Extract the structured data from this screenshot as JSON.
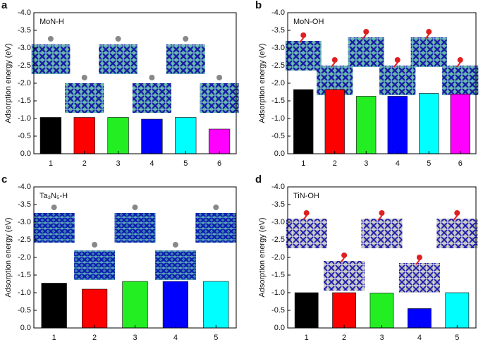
{
  "chart_data": [
    {
      "type": "bar",
      "panel_label": "a",
      "label": "MoN-H",
      "y_label": "Adsorption energy (eV)",
      "categories": [
        "1",
        "2",
        "3",
        "4",
        "5",
        "6"
      ],
      "values": [
        -1.03,
        -1.03,
        -1.03,
        -0.98,
        -1.03,
        -0.7
      ],
      "colors": [
        "#000000",
        "#ff0000",
        "#22ee22",
        "#0000ff",
        "#00ffff",
        "#ff00ff"
      ],
      "ylim": [
        0,
        -4
      ],
      "yticks": [
        {
          "value": 0,
          "label": "0.0"
        },
        -0.5,
        {
          "value": -1,
          "label": "-1.0"
        },
        -1.5,
        {
          "value": -2,
          "label": "-2.0"
        },
        -2.5,
        {
          "value": -3,
          "label": "-3.0"
        },
        -3.5,
        {
          "value": -4,
          "label": "-4.0"
        }
      ]
    },
    {
      "type": "bar",
      "panel_label": "b",
      "label": "MoN-OH",
      "y_label": "Adsorption energy (eV)",
      "categories": [
        "1",
        "2",
        "3",
        "4",
        "5",
        "6"
      ],
      "values": [
        -1.82,
        -1.82,
        -1.63,
        -1.63,
        -1.71,
        -1.69
      ],
      "colors": [
        "#000000",
        "#ff0000",
        "#22ee22",
        "#0000ff",
        "#00ffff",
        "#ff00ff"
      ],
      "ylim": [
        0,
        -4
      ],
      "yticks": [
        {
          "value": 0,
          "label": "0.0"
        },
        -0.5,
        {
          "value": -1,
          "label": "-1.0"
        },
        -1.5,
        {
          "value": -2,
          "label": "-2.0"
        },
        -2.5,
        {
          "value": -3,
          "label": "-3.0"
        },
        -3.5,
        {
          "value": -4,
          "label": "-4.0"
        }
      ]
    },
    {
      "type": "bar",
      "panel_label": "c",
      "label": "Ta₃N₅-H",
      "y_label": "Adsorption energy (eV)",
      "categories": [
        "1",
        "2",
        "3",
        "4",
        "5"
      ],
      "values": [
        -1.27,
        -1.1,
        -1.32,
        -1.32,
        -1.32
      ],
      "colors": [
        "#000000",
        "#ff0000",
        "#22ee22",
        "#0000ff",
        "#00ffff"
      ],
      "ylim": [
        0,
        -4
      ],
      "yticks": [
        {
          "value": 0,
          "label": "0.0"
        },
        -0.5,
        {
          "value": -1,
          "label": "-1.0"
        },
        -1.5,
        {
          "value": -2,
          "label": "-2.0"
        },
        -2.5,
        {
          "value": -3,
          "label": "-3.0"
        },
        -3.5,
        {
          "value": -4,
          "label": "-4.0"
        }
      ]
    },
    {
      "type": "bar",
      "panel_label": "d",
      "label": "TiN-OH",
      "y_label": "Adsorption energy (eV)",
      "categories": [
        "1",
        "2",
        "3",
        "4",
        "5"
      ],
      "values": [
        -1.0,
        -1.0,
        -0.99,
        -0.55,
        -1.0
      ],
      "colors": [
        "#000000",
        "#ff0000",
        "#22ee22",
        "#0000ff",
        "#00ffff"
      ],
      "ylim": [
        0,
        -4
      ],
      "yticks": [
        {
          "value": 0,
          "label": "0.0"
        },
        -0.5,
        {
          "value": -1,
          "label": "-1.0"
        },
        -1.5,
        {
          "value": -2,
          "label": "-2.0"
        },
        -2.5,
        {
          "value": -3,
          "label": "-3.0"
        },
        -3.5,
        {
          "value": -4,
          "label": "-4.0"
        }
      ]
    }
  ]
}
